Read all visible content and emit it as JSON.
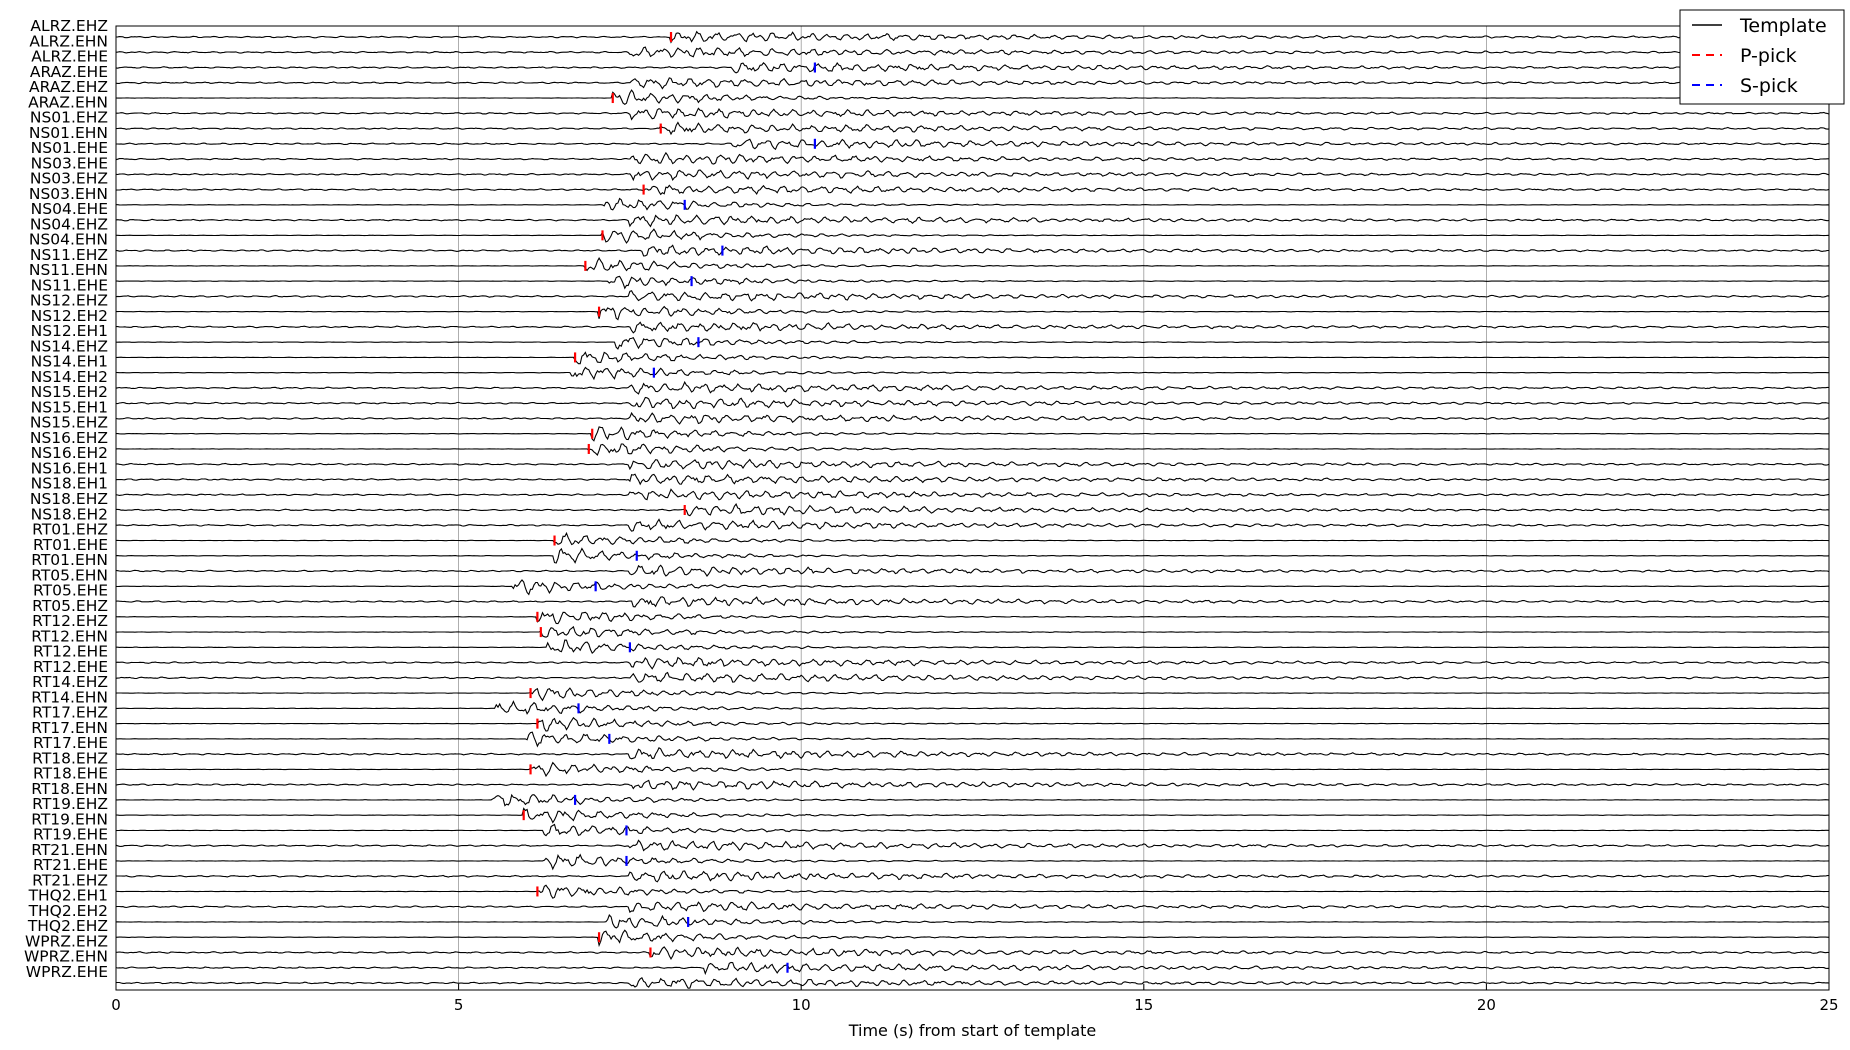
{
  "chart_data": {
    "type": "line",
    "xlabel": "Time (s) from start of template",
    "xlim": [
      0,
      25
    ],
    "xticks": [
      0,
      5,
      10,
      15,
      20,
      25
    ],
    "grid_x": true,
    "legend": {
      "placement": "top-right",
      "entries": [
        {
          "label": "Template",
          "style": "solid",
          "color": "#000000"
        },
        {
          "label": "P-pick",
          "style": "dashed",
          "color": "#ff0000"
        },
        {
          "label": "S-pick",
          "style": "dashed",
          "color": "#0000ff"
        }
      ]
    },
    "channels": [
      {
        "name": "ALRZ.EHZ",
        "p": 8.1
      },
      {
        "name": "ALRZ.EHN"
      },
      {
        "name": "ALRZ.EHE",
        "s": 10.2
      },
      {
        "name": "ARAZ.EHE"
      },
      {
        "name": "ARAZ.EHZ",
        "p": 7.25
      },
      {
        "name": "ARAZ.EHN"
      },
      {
        "name": "NS01.EHZ",
        "p": 7.95
      },
      {
        "name": "NS01.EHN",
        "s": 10.2
      },
      {
        "name": "NS01.EHE"
      },
      {
        "name": "NS03.EHE"
      },
      {
        "name": "NS03.EHZ",
        "p": 7.7
      },
      {
        "name": "NS03.EHN",
        "s": 8.3
      },
      {
        "name": "NS04.EHE"
      },
      {
        "name": "NS04.EHZ",
        "p": 7.1
      },
      {
        "name": "NS04.EHN",
        "s": 8.85
      },
      {
        "name": "NS11.EHZ",
        "p": 6.85
      },
      {
        "name": "NS11.EHN",
        "s": 8.4
      },
      {
        "name": "NS11.EHE"
      },
      {
        "name": "NS12.EHZ",
        "p": 7.05
      },
      {
        "name": "NS12.EH2"
      },
      {
        "name": "NS12.EH1",
        "s": 8.5
      },
      {
        "name": "NS14.EHZ",
        "p": 6.7
      },
      {
        "name": "NS14.EH1",
        "s": 7.85
      },
      {
        "name": "NS14.EH2"
      },
      {
        "name": "NS15.EH2"
      },
      {
        "name": "NS15.EH1"
      },
      {
        "name": "NS15.EHZ",
        "p": 6.95
      },
      {
        "name": "NS16.EHZ",
        "p": 6.9
      },
      {
        "name": "NS16.EH2"
      },
      {
        "name": "NS16.EH1"
      },
      {
        "name": "NS18.EH1"
      },
      {
        "name": "NS18.EHZ",
        "p": 8.3
      },
      {
        "name": "NS18.EH2"
      },
      {
        "name": "RT01.EHZ",
        "p": 6.4
      },
      {
        "name": "RT01.EHE",
        "s": 7.6
      },
      {
        "name": "RT01.EHN"
      },
      {
        "name": "RT05.EHN",
        "s": 7.0
      },
      {
        "name": "RT05.EHE"
      },
      {
        "name": "RT05.EHZ",
        "p": 6.15
      },
      {
        "name": "RT12.EHZ",
        "p": 6.2
      },
      {
        "name": "RT12.EHN",
        "s": 7.5
      },
      {
        "name": "RT12.EHE"
      },
      {
        "name": "RT12.EHE"
      },
      {
        "name": "RT14.EHZ",
        "p": 6.05
      },
      {
        "name": "RT14.EHN",
        "s": 6.75
      },
      {
        "name": "RT17.EHZ",
        "p": 6.15
      },
      {
        "name": "RT17.EHN",
        "s": 7.2
      },
      {
        "name": "RT17.EHE"
      },
      {
        "name": "RT18.EHZ",
        "p": 6.05
      },
      {
        "name": "RT18.EHE"
      },
      {
        "name": "RT18.EHN",
        "s": 6.7
      },
      {
        "name": "RT19.EHZ",
        "p": 5.95
      },
      {
        "name": "RT19.EHN",
        "s": 7.45
      },
      {
        "name": "RT19.EHE"
      },
      {
        "name": "RT21.EHN",
        "s": 7.45
      },
      {
        "name": "RT21.EHE"
      },
      {
        "name": "RT21.EHZ",
        "p": 6.15
      },
      {
        "name": "THQ2.EH1"
      },
      {
        "name": "THQ2.EH2",
        "s": 8.35
      },
      {
        "name": "THQ2.EHZ",
        "p": 7.05
      },
      {
        "name": "WPRZ.EHZ",
        "p": 7.8
      },
      {
        "name": "WPRZ.EHN",
        "s": 9.8
      },
      {
        "name": "WPRZ.EHE"
      }
    ]
  }
}
